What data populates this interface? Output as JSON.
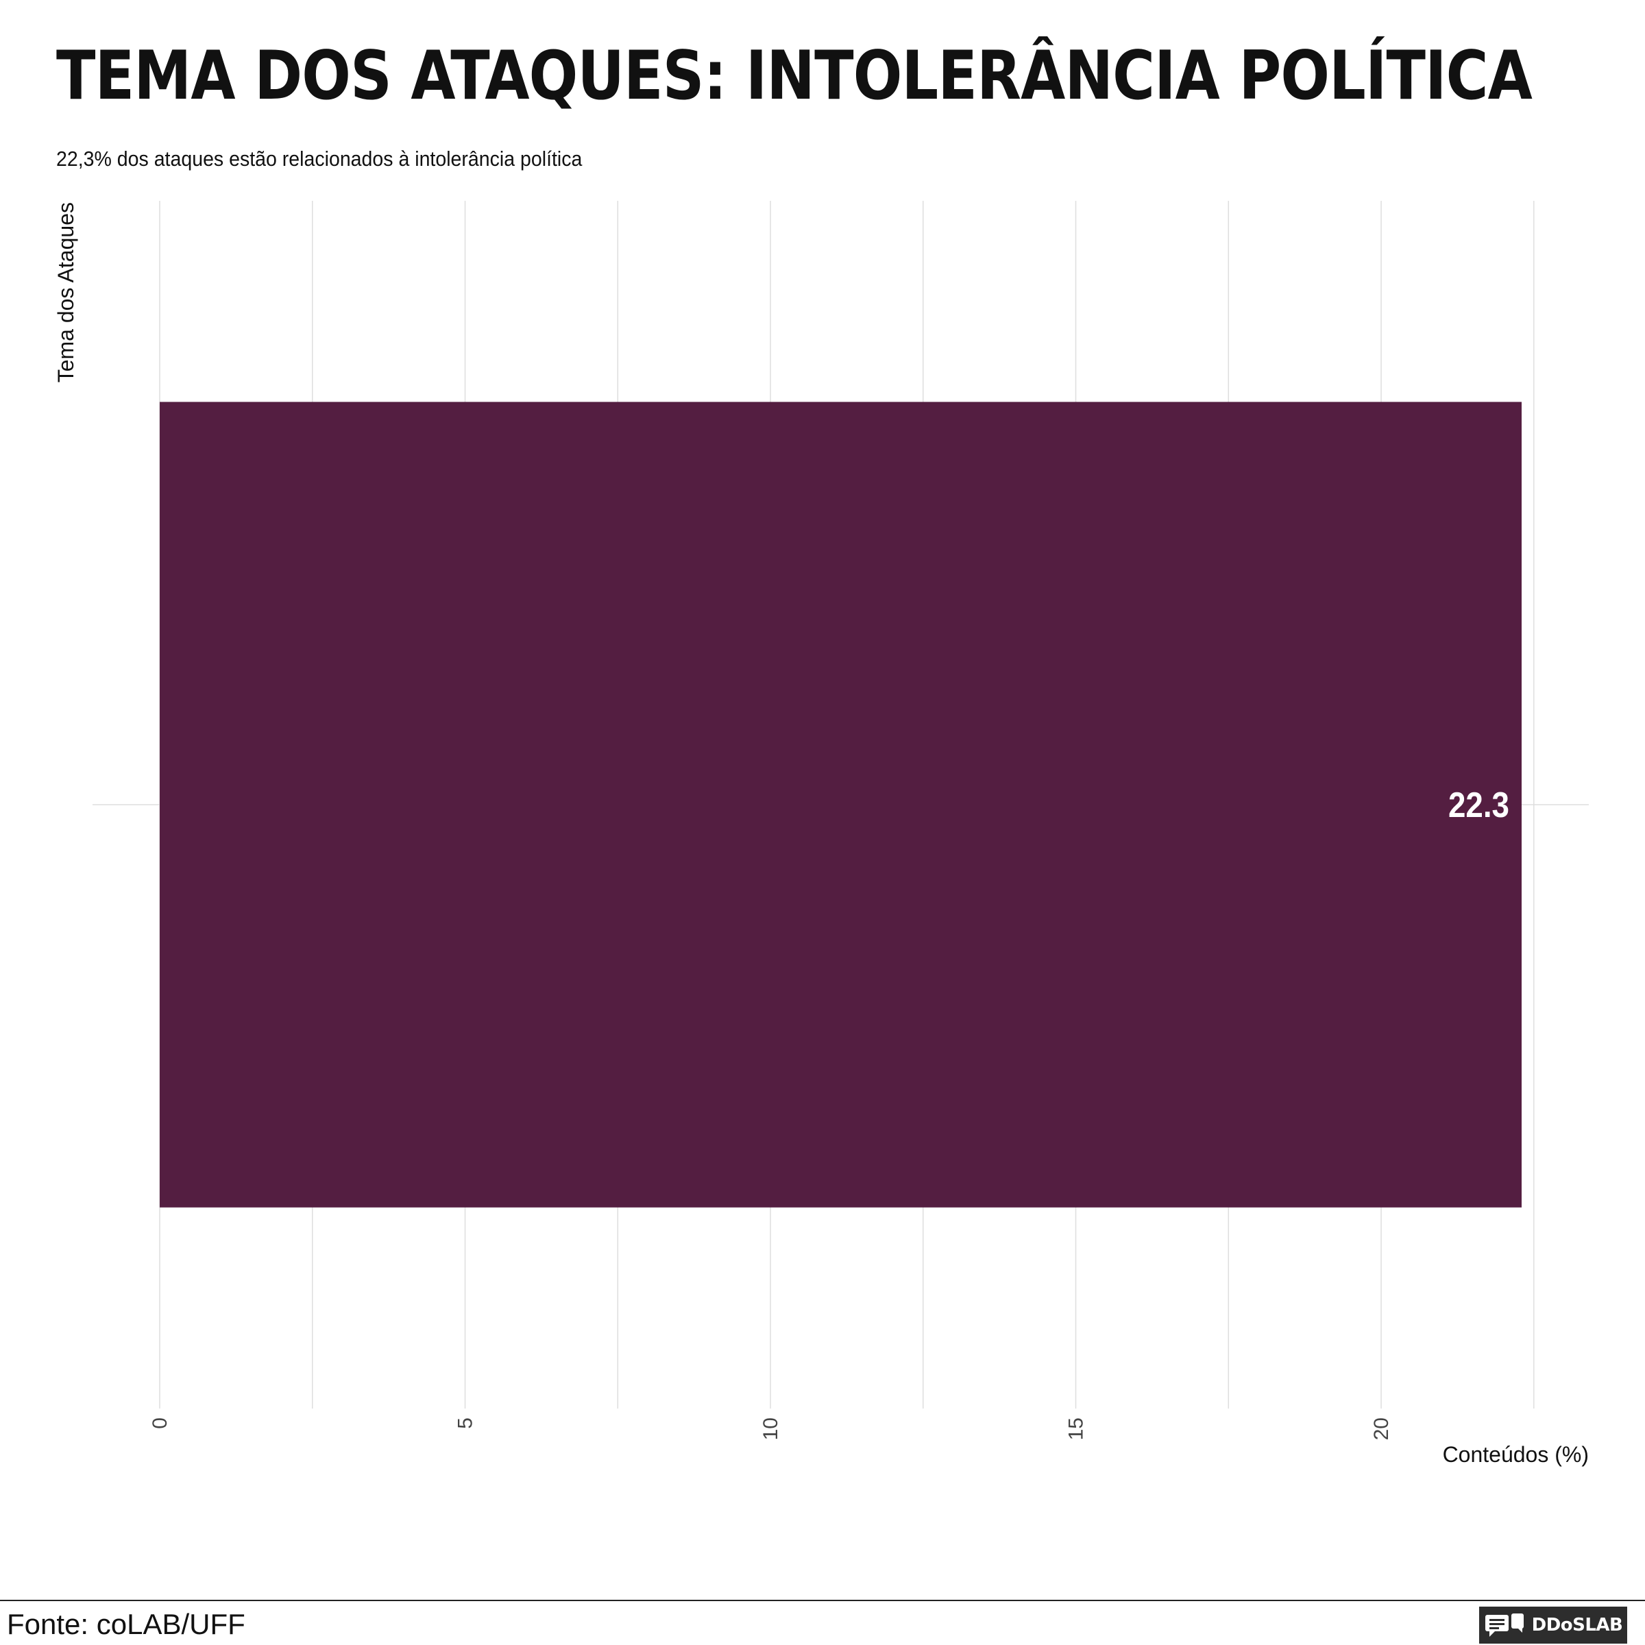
{
  "chart_data": {
    "type": "bar",
    "orientation": "horizontal",
    "title": "Tema dos Ataques: Intolerância Política",
    "subtitle": "22,3% dos ataques estão relacionados à intolerância política",
    "xlabel": "Conteúdos (%)",
    "ylabel": "Tema dos Ataques",
    "categories": [
      ""
    ],
    "values": [
      22.3
    ],
    "data_labels": [
      "22.3"
    ],
    "xlim": [
      -1.1,
      23.4
    ],
    "x_ticks": [
      0,
      5,
      10,
      15,
      20
    ],
    "x_tick_labels": [
      "0",
      "5",
      "10",
      "15",
      "20"
    ],
    "x_minor_gridlines": [
      2.5,
      7.5,
      12.5,
      17.5,
      22.5
    ],
    "grid": true,
    "bar_color": "#541e41",
    "label_color": "#ffffff"
  },
  "footer": {
    "source": "Fonte: coLAB/UFF",
    "logo_text": "DDoSLAB",
    "logo_icon": "chat-bubbles-icon"
  }
}
